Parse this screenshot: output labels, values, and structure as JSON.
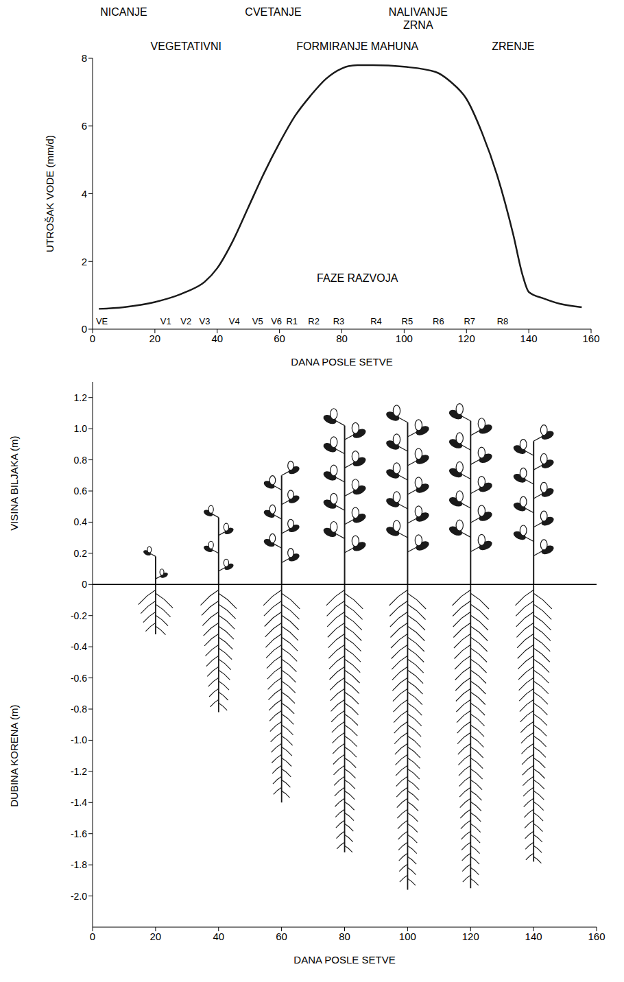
{
  "chart_data": [
    {
      "type": "line",
      "xlabel": "DANA POSLE SETVE",
      "ylabel": "UTROŠAK VODE (mm/d)",
      "x": [
        2,
        10,
        20,
        30,
        36,
        40,
        45,
        50,
        55,
        60,
        65,
        70,
        75,
        80,
        85,
        90,
        100,
        110,
        115,
        120,
        125,
        130,
        135,
        138,
        140,
        145,
        150,
        157
      ],
      "values": [
        0.6,
        0.65,
        0.8,
        1.1,
        1.4,
        1.8,
        2.6,
        3.6,
        4.6,
        5.5,
        6.3,
        6.9,
        7.4,
        7.7,
        7.8,
        7.8,
        7.75,
        7.6,
        7.3,
        6.8,
        5.8,
        4.5,
        2.8,
        1.6,
        1.1,
        0.9,
        0.75,
        0.65
      ],
      "color": "#1a1a1a",
      "xlim": [
        0,
        160
      ],
      "xticks": [
        0,
        20,
        40,
        60,
        80,
        100,
        120,
        140,
        160
      ],
      "ylim": [
        0,
        8
      ],
      "yticks": [
        0,
        2,
        4,
        6,
        8
      ],
      "phases": [
        {
          "text": "NICANJE",
          "x": 10
        },
        {
          "text": "CVETANJE",
          "x": 58
        },
        {
          "text": "NALIVANJE ZRNA",
          "x": 104.5
        }
      ],
      "periods": [
        {
          "text": "VEGETATIVNI",
          "x": 30
        },
        {
          "text": "FORMIRANJE MAHUNA",
          "x": 85
        },
        {
          "text": "ZRENJE",
          "x": 135
        }
      ],
      "stages": [
        {
          "label": "VE",
          "x": 3
        },
        {
          "label": "V1",
          "x": 23.5
        },
        {
          "label": "V2",
          "x": 30
        },
        {
          "label": "V3",
          "x": 36
        },
        {
          "label": "V4",
          "x": 45.5
        },
        {
          "label": "V5",
          "x": 53
        },
        {
          "label": "V6",
          "x": 59
        },
        {
          "label": "R1",
          "x": 64
        },
        {
          "label": "R2",
          "x": 71
        },
        {
          "label": "R3",
          "x": 79
        },
        {
          "label": "R4",
          "x": 91
        },
        {
          "label": "R5",
          "x": 101
        },
        {
          "label": "R6",
          "x": 111
        },
        {
          "label": "R7",
          "x": 121
        },
        {
          "label": "R8",
          "x": 131.6
        }
      ],
      "annotations": [
        {
          "text": "FAZE RAZVOJA",
          "x": 85,
          "y": 1.4
        }
      ]
    },
    {
      "type": "bar",
      "xlabel": "DANA POSLE SETVE",
      "x": [
        20,
        40,
        60,
        80,
        100,
        120,
        140
      ],
      "series": [
        {
          "name": "VISINA BILJAKA (m)",
          "type": "stem",
          "color": "#1a1a1a",
          "values": [
            0.18,
            0.43,
            0.7,
            1.02,
            1.04,
            1.05,
            0.92
          ]
        },
        {
          "name": "DUBINA KORENA (m)",
          "type": "root",
          "color": "#1a1a1a",
          "values": [
            -0.32,
            -0.82,
            -1.4,
            -1.72,
            -1.96,
            -1.95,
            -1.78
          ]
        }
      ],
      "xlim": [
        0,
        160
      ],
      "xticks": [
        0,
        20,
        40,
        60,
        80,
        100,
        120,
        140,
        160
      ],
      "ylim": [
        -2.2,
        1.3
      ],
      "yticks": [
        1.2,
        {
          "value": 1,
          "label": "1.0"
        },
        0.8,
        0.6,
        0.4,
        0.2,
        0,
        -0.2,
        -0.4,
        -0.6,
        -0.8,
        {
          "value": -1,
          "label": "-1.0"
        },
        -1.2,
        -1.4,
        -1.6,
        -1.8,
        {
          "value": -2,
          "label": "-2.0"
        }
      ]
    }
  ]
}
